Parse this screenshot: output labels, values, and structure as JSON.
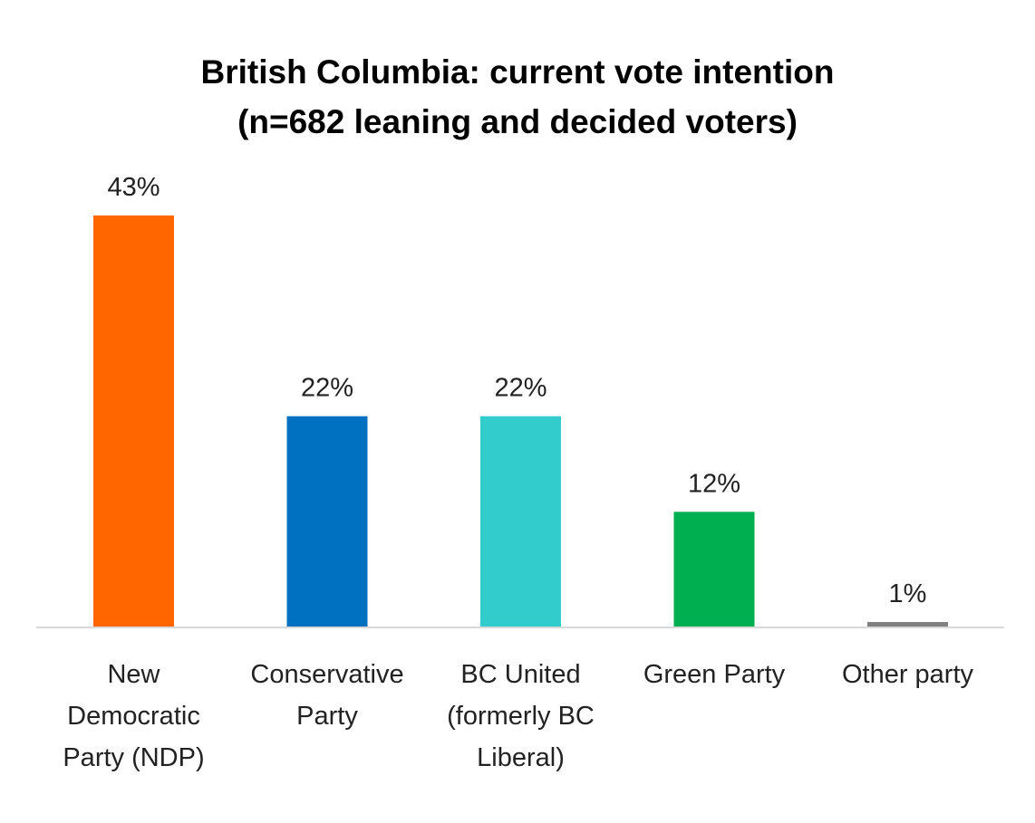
{
  "chart_data": {
    "type": "bar",
    "title": [
      "British Columbia: current vote intention",
      "(n=682 leaning and decided voters)"
    ],
    "categories": [
      [
        "New",
        "Democratic",
        "Party (NDP)"
      ],
      [
        "Conservative",
        "Party"
      ],
      [
        "BC United",
        "(formerly BC",
        "Liberal)"
      ],
      [
        "Green Party"
      ],
      [
        "Other party"
      ]
    ],
    "values": [
      43,
      22,
      22,
      12,
      1
    ],
    "labels": [
      "43%",
      "22%",
      "22%",
      "12%",
      "1%"
    ],
    "colors": [
      "#FF6600",
      "#0070C0",
      "#33CCCC",
      "#00B050",
      "#808080"
    ],
    "ylim": [
      0,
      45
    ],
    "grid": false,
    "xlabel": "",
    "ylabel": ""
  }
}
